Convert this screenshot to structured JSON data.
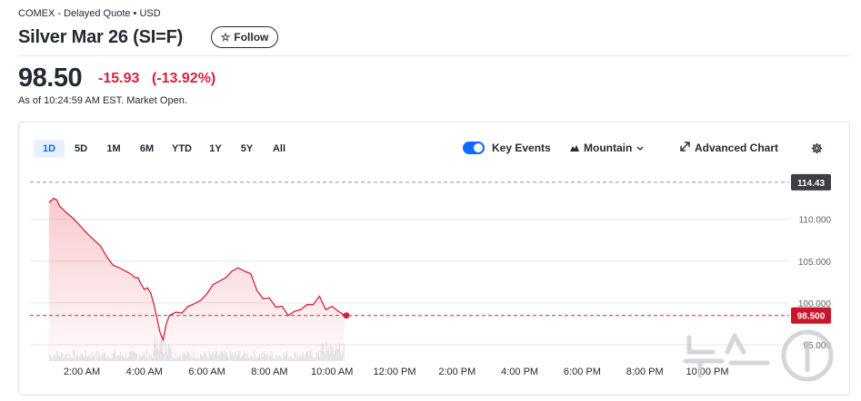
{
  "header": {
    "exchange": "COMEX - Delayed Quote • USD",
    "title": "Silver Mar 26 (SI=F)",
    "follow_label": "Follow"
  },
  "quote": {
    "price": "98.50",
    "change": "-15.93",
    "change_pct": "(-13.92%)",
    "as_of": "As of 10:24:59 AM EST. Market Open."
  },
  "colors": {
    "down": "#d1243f",
    "accent": "#0f69ff",
    "text": "#232a31"
  },
  "chart_controls": {
    "ranges": [
      "1D",
      "5D",
      "1M",
      "6M",
      "YTD",
      "1Y",
      "5Y",
      "All"
    ],
    "active_range": "1D",
    "key_events_label": "Key Events",
    "key_events_on": true,
    "chart_type_label": "Mountain",
    "advanced_label": "Advanced Chart",
    "icons": [
      "toggle-switch",
      "mountain-icon",
      "chevron-down-icon",
      "expand-icon",
      "gear-icon"
    ]
  },
  "chart_data": {
    "type": "area",
    "x_tick_labels": [
      "2:00 AM",
      "4:00 AM",
      "6:00 AM",
      "8:00 AM",
      "10:00 AM",
      "12:00 PM",
      "2:00 PM",
      "4:00 PM",
      "6:00 PM",
      "8:00 PM",
      "10:00 PM"
    ],
    "y_tick_labels": [
      "110.000",
      "105.000",
      "100.000",
      "95.000"
    ],
    "ylim": [
      93.2,
      115.5
    ],
    "x_hours": [
      0.95,
      1.0,
      1.05,
      1.1,
      1.2,
      1.3,
      1.4,
      1.5,
      1.6,
      1.7,
      1.8,
      1.9,
      2.0,
      2.2,
      2.4,
      2.6,
      2.8,
      3.0,
      3.2,
      3.4,
      3.6,
      3.7,
      3.8,
      3.9,
      4.0,
      4.1,
      4.2,
      4.3,
      4.4,
      4.5,
      4.6,
      4.7,
      4.8,
      4.9,
      5.0,
      5.2,
      5.4,
      5.6,
      5.8,
      6.0,
      6.2,
      6.4,
      6.6,
      6.8,
      7.0,
      7.2,
      7.4,
      7.6,
      7.8,
      8.0,
      8.2,
      8.4,
      8.6,
      8.8,
      9.0,
      9.2,
      9.4,
      9.6,
      9.8,
      10.0,
      10.2,
      10.4
    ],
    "values": [
      112.0,
      112.2,
      112.3,
      112.5,
      112.3,
      111.5,
      111.2,
      110.8,
      110.5,
      110.2,
      109.8,
      109.4,
      109.0,
      108.2,
      107.5,
      106.8,
      105.5,
      104.5,
      104.2,
      103.8,
      103.4,
      103.0,
      103.0,
      102.2,
      101.6,
      101.8,
      101.2,
      99.9,
      98.2,
      96.5,
      95.6,
      97.5,
      98.5,
      98.7,
      98.9,
      98.8,
      99.6,
      99.9,
      100.3,
      101.1,
      102.2,
      102.6,
      103.0,
      103.8,
      104.2,
      103.8,
      103.5,
      101.5,
      100.5,
      100.6,
      99.5,
      99.6,
      98.5,
      99.0,
      99.2,
      99.8,
      99.8,
      100.8,
      99.2,
      99.6,
      99.0,
      98.5
    ],
    "reference_lines": [
      {
        "label": "114.43",
        "value": 114.43
      },
      {
        "label": "98.500",
        "value": 98.5
      }
    ],
    "volume_bars_shown": true
  },
  "watermark": {
    "text": "뉴스1"
  }
}
